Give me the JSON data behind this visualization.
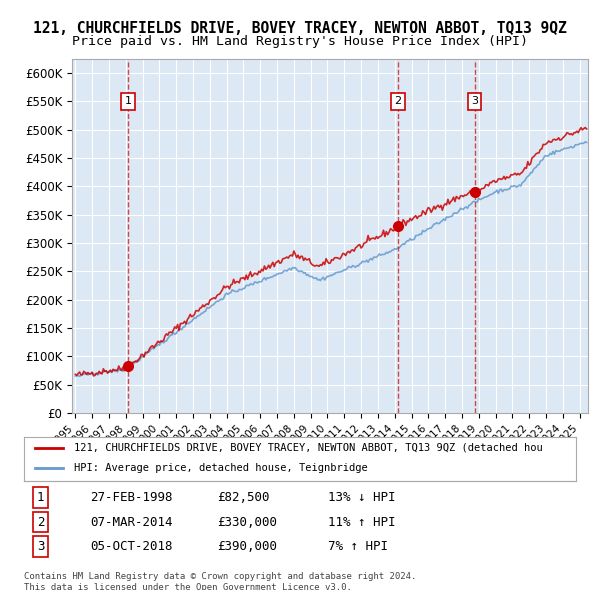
{
  "title1": "121, CHURCHFIELDS DRIVE, BOVEY TRACEY, NEWTON ABBOT, TQ13 9QZ",
  "title2": "Price paid vs. HM Land Registry's House Price Index (HPI)",
  "xlabel": "",
  "ylabel": "",
  "ylim": [
    0,
    625000
  ],
  "yticks": [
    0,
    50000,
    100000,
    150000,
    200000,
    250000,
    300000,
    350000,
    400000,
    450000,
    500000,
    550000,
    600000
  ],
  "ytick_labels": [
    "£0",
    "£50K",
    "£100K",
    "£150K",
    "£200K",
    "£250K",
    "£300K",
    "£350K",
    "£400K",
    "£450K",
    "£500K",
    "£550K",
    "£600K"
  ],
  "background_color": "#dce9f5",
  "plot_bg_color": "#dce9f5",
  "grid_color": "#ffffff",
  "line_color_red": "#cc0000",
  "line_color_blue": "#6699cc",
  "sale_dates": [
    1998.15,
    2014.18,
    2018.75
  ],
  "sale_prices": [
    82500,
    330000,
    390000
  ],
  "sale_labels": [
    "1",
    "2",
    "3"
  ],
  "legend_red": "121, CHURCHFIELDS DRIVE, BOVEY TRACEY, NEWTON ABBOT, TQ13 9QZ (detached hou",
  "legend_blue": "HPI: Average price, detached house, Teignbridge",
  "table_data": [
    [
      "1",
      "27-FEB-1998",
      "£82,500",
      "13% ↓ HPI"
    ],
    [
      "2",
      "07-MAR-2014",
      "£330,000",
      "11% ↑ HPI"
    ],
    [
      "3",
      "05-OCT-2018",
      "£390,000",
      "7% ↑ HPI"
    ]
  ],
  "footnote": "Contains HM Land Registry data © Crown copyright and database right 2024.\nThis data is licensed under the Open Government Licence v3.0.",
  "title_fontsize": 11,
  "subtitle_fontsize": 10
}
